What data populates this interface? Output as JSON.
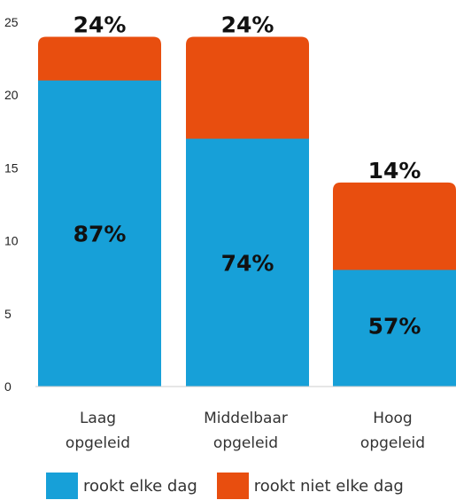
{
  "chart_data": {
    "type": "bar",
    "stacked": true,
    "categories": [
      [
        "Laag",
        "opgeleid"
      ],
      [
        "Middelbaar",
        "opgeleid"
      ],
      [
        "Hoog",
        "opgeleid"
      ]
    ],
    "series": [
      {
        "name": "rookt elke dag",
        "color": "#17a0d8",
        "values": [
          21,
          17,
          8
        ],
        "labels": [
          "87%",
          "74%",
          "57%"
        ]
      },
      {
        "name": "rookt niet elke dag",
        "color": "#e84e0f",
        "values": [
          3,
          7,
          6
        ]
      }
    ],
    "totals_labels": [
      "24%",
      "24%",
      "14%"
    ],
    "ylim": [
      0,
      25
    ],
    "yticks": [
      0,
      5,
      10,
      15,
      20,
      25
    ],
    "legend_position": "bottom",
    "grid": false
  }
}
